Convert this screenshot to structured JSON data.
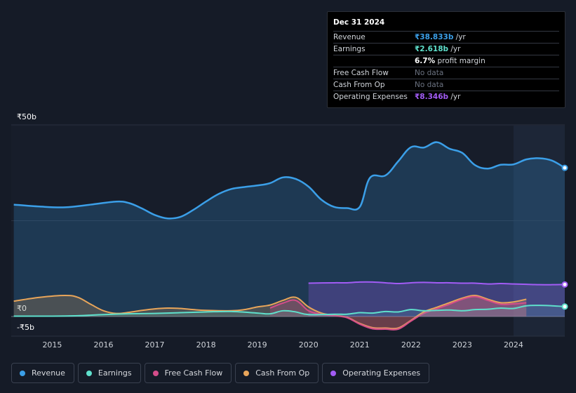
{
  "tooltip": {
    "date": "Dec 31 2024",
    "rows": [
      {
        "label": "Revenue",
        "value": "₹38.833b",
        "unit": " /yr",
        "color": "#3b9fe8"
      },
      {
        "label": "Earnings",
        "value": "₹2.618b",
        "unit": " /yr",
        "color": "#5fe0cc"
      },
      {
        "label": "",
        "value": "6.7%",
        "unit": " profit margin",
        "color": "#ffffff"
      },
      {
        "label": "Free Cash Flow",
        "value": "No data",
        "unit": "",
        "color": "#6b7280"
      },
      {
        "label": "Cash From Op",
        "value": "No data",
        "unit": "",
        "color": "#6b7280"
      },
      {
        "label": "Operating Expenses",
        "value": "₹8.346b",
        "unit": " /yr",
        "color": "#a25cf5"
      }
    ]
  },
  "legend": [
    {
      "label": "Revenue",
      "color": "#3b9fe8"
    },
    {
      "label": "Earnings",
      "color": "#5fe0cc"
    },
    {
      "label": "Free Cash Flow",
      "color": "#d44d8a"
    },
    {
      "label": "Cash From Op",
      "color": "#e8a55a"
    },
    {
      "label": "Operating Expenses",
      "color": "#a25cf5"
    }
  ],
  "chart_data": {
    "type": "area",
    "title": "",
    "currency": "₹",
    "ylim": [
      -5,
      50
    ],
    "ytick_labels": [
      {
        "value": 50,
        "label": "₹50b"
      },
      {
        "value": 0,
        "label": "₹0"
      },
      {
        "value": -5,
        "label": "-₹5b"
      }
    ],
    "xlim": [
      2014.2,
      2025.0
    ],
    "xtick_labels": [
      "2015",
      "2016",
      "2017",
      "2018",
      "2019",
      "2020",
      "2021",
      "2022",
      "2023",
      "2024"
    ],
    "xtick_values": [
      2015,
      2016,
      2017,
      2018,
      2019,
      2020,
      2021,
      2022,
      2023,
      2024
    ],
    "highlight_from": 2024.0,
    "series": [
      {
        "name": "Revenue",
        "color": "#3b9fe8",
        "points": [
          [
            2014.25,
            29.2
          ],
          [
            2014.75,
            28.7
          ],
          [
            2015.25,
            28.5
          ],
          [
            2015.75,
            29.2
          ],
          [
            2016.25,
            30.0
          ],
          [
            2016.5,
            29.6
          ],
          [
            2016.75,
            28.2
          ],
          [
            2017.0,
            26.5
          ],
          [
            2017.25,
            25.6
          ],
          [
            2017.5,
            26.0
          ],
          [
            2017.75,
            27.8
          ],
          [
            2018.0,
            30.0
          ],
          [
            2018.25,
            32.0
          ],
          [
            2018.5,
            33.3
          ],
          [
            2018.75,
            33.8
          ],
          [
            2019.0,
            34.2
          ],
          [
            2019.25,
            34.8
          ],
          [
            2019.5,
            36.3
          ],
          [
            2019.75,
            35.9
          ],
          [
            2020.0,
            33.9
          ],
          [
            2020.25,
            30.5
          ],
          [
            2020.5,
            28.6
          ],
          [
            2020.75,
            28.3
          ],
          [
            2021.0,
            28.6
          ],
          [
            2021.2,
            36.2
          ],
          [
            2021.5,
            36.8
          ],
          [
            2021.75,
            40.5
          ],
          [
            2022.0,
            44.2
          ],
          [
            2022.25,
            44.1
          ],
          [
            2022.5,
            45.5
          ],
          [
            2022.75,
            43.8
          ],
          [
            2023.0,
            42.7
          ],
          [
            2023.25,
            39.5
          ],
          [
            2023.5,
            38.6
          ],
          [
            2023.75,
            39.6
          ],
          [
            2024.0,
            39.7
          ],
          [
            2024.25,
            41.0
          ],
          [
            2024.5,
            41.3
          ],
          [
            2024.75,
            40.7
          ],
          [
            2025.0,
            38.8
          ]
        ]
      },
      {
        "name": "Earnings",
        "color": "#5fe0cc",
        "points": [
          [
            2014.25,
            0.1
          ],
          [
            2015.0,
            0.1
          ],
          [
            2015.5,
            0.2
          ],
          [
            2016.0,
            0.5
          ],
          [
            2016.5,
            0.7
          ],
          [
            2017.0,
            0.8
          ],
          [
            2017.5,
            1.0
          ],
          [
            2018.0,
            1.2
          ],
          [
            2018.5,
            1.3
          ],
          [
            2019.0,
            0.9
          ],
          [
            2019.25,
            0.7
          ],
          [
            2019.5,
            1.5
          ],
          [
            2019.75,
            1.2
          ],
          [
            2020.0,
            0.5
          ],
          [
            2020.5,
            0.6
          ],
          [
            2020.75,
            0.6
          ],
          [
            2021.0,
            1.0
          ],
          [
            2021.25,
            0.9
          ],
          [
            2021.5,
            1.3
          ],
          [
            2021.75,
            1.2
          ],
          [
            2022.0,
            1.8
          ],
          [
            2022.25,
            1.5
          ],
          [
            2022.5,
            1.6
          ],
          [
            2022.75,
            1.7
          ],
          [
            2023.0,
            1.5
          ],
          [
            2023.25,
            1.8
          ],
          [
            2023.5,
            1.9
          ],
          [
            2023.75,
            2.2
          ],
          [
            2024.0,
            2.1
          ],
          [
            2024.25,
            2.8
          ],
          [
            2024.5,
            2.9
          ],
          [
            2024.75,
            2.8
          ],
          [
            2025.0,
            2.6
          ]
        ]
      },
      {
        "name": "Free Cash Flow",
        "color": "#d44d8a",
        "points": [
          [
            2019.25,
            2.2
          ],
          [
            2019.5,
            3.5
          ],
          [
            2019.75,
            4.2
          ],
          [
            2020.0,
            1.5
          ],
          [
            2020.25,
            0.6
          ],
          [
            2020.5,
            0.2
          ],
          [
            2020.75,
            -0.3
          ],
          [
            2021.0,
            -2.0
          ],
          [
            2021.25,
            -3.2
          ],
          [
            2021.5,
            -3.3
          ],
          [
            2021.75,
            -3.3
          ],
          [
            2022.0,
            -1.2
          ],
          [
            2022.25,
            0.8
          ],
          [
            2022.5,
            2.0
          ],
          [
            2022.75,
            3.2
          ],
          [
            2023.0,
            4.5
          ],
          [
            2023.25,
            5.2
          ],
          [
            2023.5,
            4.2
          ],
          [
            2023.75,
            3.2
          ],
          [
            2024.0,
            3.3
          ],
          [
            2024.25,
            3.6
          ]
        ]
      },
      {
        "name": "Cash From Op",
        "color": "#e8a55a",
        "points": [
          [
            2014.25,
            4.0
          ],
          [
            2014.75,
            5.0
          ],
          [
            2015.25,
            5.5
          ],
          [
            2015.5,
            5.0
          ],
          [
            2015.75,
            3.2
          ],
          [
            2016.0,
            1.5
          ],
          [
            2016.25,
            0.8
          ],
          [
            2016.5,
            1.1
          ],
          [
            2016.75,
            1.6
          ],
          [
            2017.0,
            2.0
          ],
          [
            2017.25,
            2.2
          ],
          [
            2017.5,
            2.1
          ],
          [
            2017.75,
            1.8
          ],
          [
            2018.0,
            1.6
          ],
          [
            2018.5,
            1.5
          ],
          [
            2018.75,
            1.8
          ],
          [
            2019.0,
            2.5
          ],
          [
            2019.25,
            3.0
          ],
          [
            2019.5,
            4.2
          ],
          [
            2019.75,
            5.0
          ],
          [
            2020.0,
            2.5
          ],
          [
            2020.25,
            0.9
          ],
          [
            2020.5,
            0.3
          ],
          [
            2020.75,
            -0.2
          ],
          [
            2021.0,
            -1.8
          ],
          [
            2021.25,
            -2.9
          ],
          [
            2021.5,
            -3.0
          ],
          [
            2021.75,
            -3.0
          ],
          [
            2022.0,
            -1.0
          ],
          [
            2022.25,
            1.2
          ],
          [
            2022.5,
            2.4
          ],
          [
            2022.75,
            3.6
          ],
          [
            2023.0,
            4.8
          ],
          [
            2023.25,
            5.5
          ],
          [
            2023.5,
            4.5
          ],
          [
            2023.75,
            3.6
          ],
          [
            2024.0,
            3.8
          ],
          [
            2024.25,
            4.5
          ]
        ]
      },
      {
        "name": "Operating Expenses",
        "color": "#a25cf5",
        "points": [
          [
            2020.0,
            8.7
          ],
          [
            2020.5,
            8.8
          ],
          [
            2020.75,
            8.8
          ],
          [
            2021.0,
            9.0
          ],
          [
            2021.25,
            9.0
          ],
          [
            2021.5,
            8.8
          ],
          [
            2021.75,
            8.6
          ],
          [
            2022.0,
            8.8
          ],
          [
            2022.25,
            8.9
          ],
          [
            2022.5,
            8.8
          ],
          [
            2022.75,
            8.8
          ],
          [
            2023.0,
            8.7
          ],
          [
            2023.25,
            8.7
          ],
          [
            2023.5,
            8.5
          ],
          [
            2023.75,
            8.6
          ],
          [
            2024.0,
            8.5
          ],
          [
            2024.25,
            8.4
          ],
          [
            2024.5,
            8.3
          ],
          [
            2024.75,
            8.3
          ],
          [
            2025.0,
            8.35
          ]
        ]
      }
    ]
  }
}
